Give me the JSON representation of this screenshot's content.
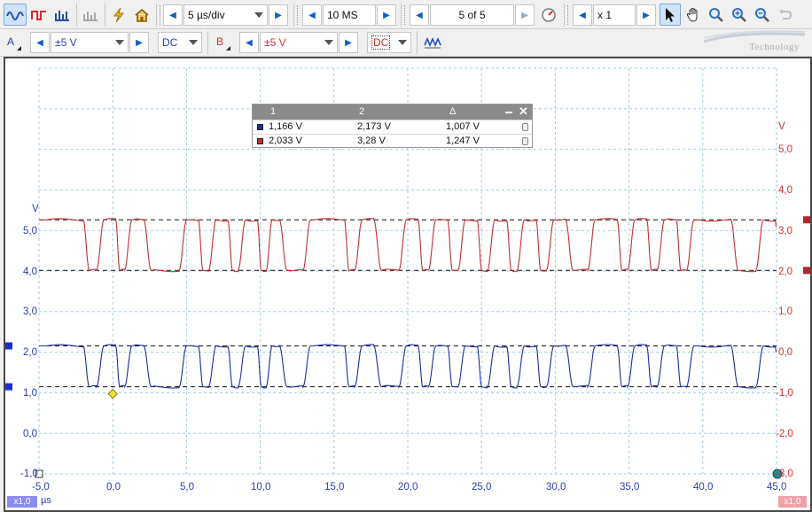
{
  "toolbar": {
    "timebase": "5 µs/div",
    "samples": "10 MS",
    "capture": "5 of 5",
    "zoom": "x 1"
  },
  "channel_a": {
    "letter": "A",
    "range": "±5 V",
    "coupling": "DC",
    "color": "#2a3fb0"
  },
  "channel_b": {
    "letter": "B",
    "range": "±5 V",
    "coupling": "DC",
    "color": "#d03030"
  },
  "watermark": "Technology",
  "measurements": {
    "headers": [
      "1",
      "2",
      "Δ"
    ],
    "rows": [
      {
        "v1": "1,166 V",
        "v2": "2,173 V",
        "delta": "1,007 V",
        "color": "#1a2e9c"
      },
      {
        "v1": "2,033 V",
        "v2": "3,28 V",
        "delta": "1,247 V",
        "color": "#c03030"
      }
    ]
  },
  "axes": {
    "left_unit": "V",
    "right_unit": "V",
    "x_unit": "µs",
    "left_ticks": [
      "5,0",
      "4,0",
      "3,0",
      "2,0",
      "1,0",
      "0,0",
      "-1,0"
    ],
    "right_ticks": [
      "5,0",
      "4,0",
      "3,0",
      "2,0",
      "1,0",
      "0,0",
      "-1,0",
      "-2,0",
      "-3,0"
    ],
    "x_ticks": [
      "-5,0",
      "0,0",
      "5,0",
      "10,0",
      "15,0",
      "20,0",
      "25,0",
      "30,0",
      "35,0",
      "40,0",
      "45,0"
    ],
    "left_badge": "x1,0",
    "right_badge": "x1,0"
  },
  "chart_data": {
    "type": "line",
    "xlabel": "µs",
    "ylabel": "V",
    "xlim": [
      -5,
      45
    ],
    "grid": true,
    "series": [
      {
        "name": "A",
        "range": [
          1.166,
          2.173
        ],
        "color": "#1a2e9c"
      },
      {
        "name": "B",
        "range": [
          2.033,
          3.28
        ],
        "color": "#c03030"
      }
    ],
    "rulers": {
      "a": [
        1.166,
        2.173
      ],
      "b": [
        2.033,
        3.28
      ]
    },
    "trigger_x": 0.0
  }
}
